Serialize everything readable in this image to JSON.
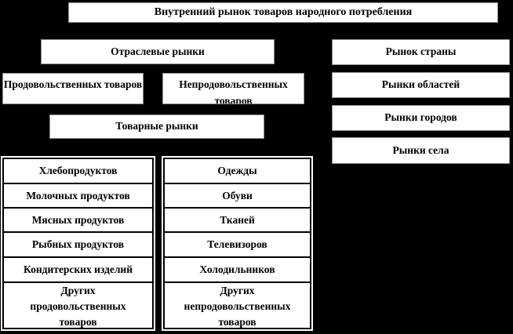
{
  "colors": {
    "background": "#000000",
    "box_fill": "#ffffff",
    "box_border": "#8f8f8f",
    "text": "#000000",
    "table_grid": "#000000"
  },
  "diagram": {
    "title": "Внутренний рынок товаров народного потребления",
    "industry": {
      "title": "Отраслевые рынки",
      "food_group": "Продовольственных товаров",
      "nonfood_group": "Непродовольственных товаров",
      "commodity_title": "Товарные рынки",
      "food_markets": [
        "Хлебопродуктов",
        "Молочных продуктов",
        "Мясных продуктов",
        "Рыбных продуктов",
        "Кондитерских изделий",
        "Других продовольственных товаров"
      ],
      "nonfood_markets": [
        "Одежды",
        "Обуви",
        "Тканей",
        "Телевизоров",
        "Холодильников",
        "Других непродовольственных товаров"
      ]
    },
    "territorial": {
      "title": "Рынок страны",
      "items": [
        "Рынки областей",
        "Рынки городов",
        "Рынки села"
      ]
    }
  }
}
